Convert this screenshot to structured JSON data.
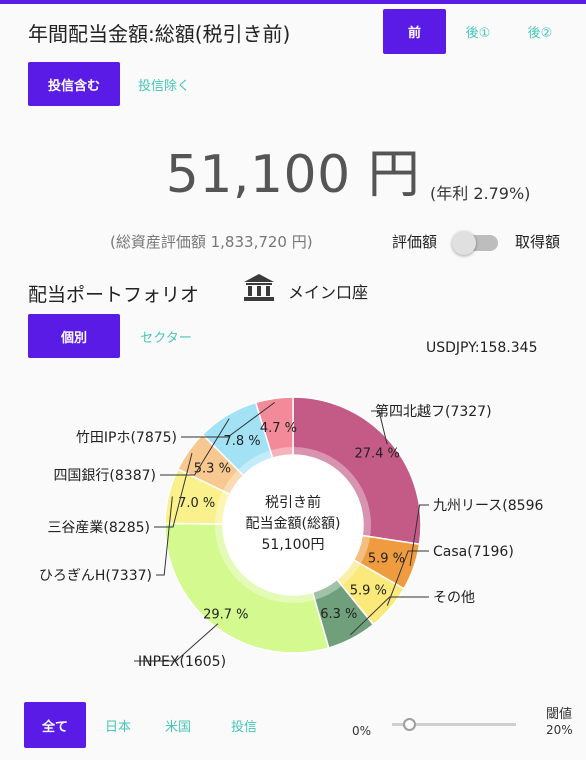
{
  "header": {
    "title": "年間配当金額:総額(税引き前)",
    "tabs": [
      "前",
      "後①",
      "後②"
    ],
    "active_tab": 0
  },
  "filter": {
    "options": [
      "投信含む",
      "投信除く"
    ],
    "active": 0
  },
  "summary": {
    "amount": "51,100 円",
    "yield": "(年利 2.79%)",
    "total_assets": "(総資産評価額 1,833,720 円)",
    "toggle_left": "評価額",
    "toggle_right": "取得額"
  },
  "portfolio": {
    "title": "配当ポートフォリオ",
    "account_label": "メイン口座",
    "account_icon": "bank-icon",
    "view_tabs": [
      "個別",
      "セクター"
    ],
    "active_view": 0,
    "fx_rate": "USDJPY:158.345"
  },
  "chart_data": {
    "type": "pie",
    "center_label": [
      "税引き前",
      "配当金額(総額)",
      "51,100円"
    ],
    "slices": [
      {
        "label": "第四北越フ(7327)",
        "value": 27.4,
        "value_label": "27.4 %",
        "color": "#c45a86"
      },
      {
        "label": "九州リース(8596",
        "value": 5.9,
        "value_label": "5.9 %",
        "color": "#ef9b3f"
      },
      {
        "label": "Casa(7196)",
        "value": 5.9,
        "value_label": "5.9 %",
        "color": "#fbe97b"
      },
      {
        "label": "その他",
        "value": 6.3,
        "value_label": "6.3 %",
        "color": "#6fa07b"
      },
      {
        "label": "INPEX(1605)",
        "value": 29.7,
        "value_label": "29.7 %",
        "color": "#d4f98f"
      },
      {
        "label": "ひろぎんH(7337)",
        "value": 7.0,
        "value_label": "7.0 %",
        "color": "#fbf18c"
      },
      {
        "label": "三谷産業(8285)",
        "value": 5.3,
        "value_label": "5.3 %",
        "color": "#f7c890"
      },
      {
        "label": "四国銀行(8387)",
        "value": 7.8,
        "value_label": "7.8 %",
        "color": "#a3e2f5"
      },
      {
        "label": "竹田IPホ(7875)",
        "value": 4.7,
        "value_label": "4.7 %",
        "color": "#f28a99"
      }
    ]
  },
  "bottom": {
    "region_tabs": [
      "全て",
      "日本",
      "米国",
      "投信"
    ],
    "active_region": 0,
    "threshold_label": "閾値",
    "slider_min": "0%",
    "slider_max": "20%",
    "slider_value": 0
  }
}
